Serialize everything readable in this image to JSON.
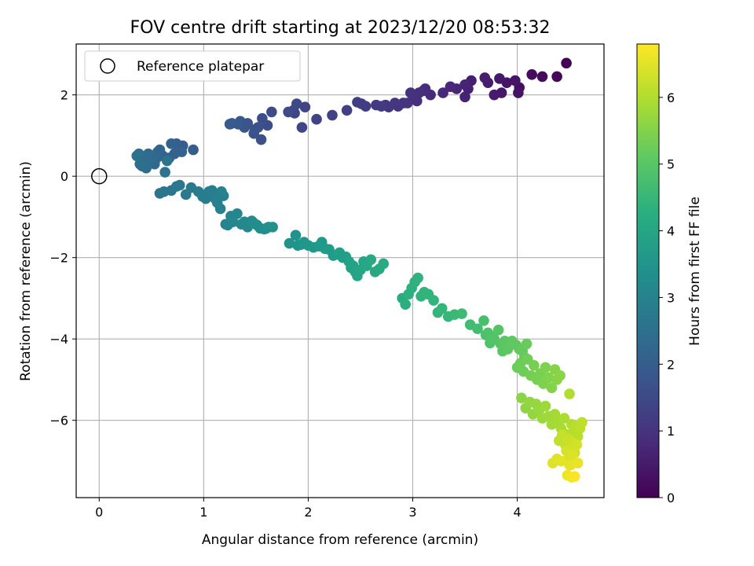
{
  "chart_data": {
    "type": "scatter",
    "title": "FOV centre drift starting at 2023/12/20 08:53:32",
    "xlabel": "Angular distance from reference (arcmin)",
    "ylabel": "Rotation from reference (arcmin)",
    "xlim": [
      -0.22,
      4.83
    ],
    "ylim": [
      -7.9,
      3.25
    ],
    "xticks": [
      0,
      1,
      2,
      3,
      4
    ],
    "yticks": [
      -6,
      -4,
      -2,
      0,
      2
    ],
    "grid": true,
    "legend": {
      "placement": "top-left",
      "entries": [
        "Reference platepar"
      ]
    },
    "colorbar": {
      "label": "Hours from first FF file",
      "colormap": "viridis",
      "range": [
        0,
        6.8
      ],
      "ticks": [
        0,
        1,
        2,
        3,
        4,
        5,
        6
      ]
    },
    "reference_point": {
      "x": 0,
      "y": 0,
      "label": "Reference platepar"
    },
    "series": [
      {
        "x": [
          4.47,
          4.38,
          4.24,
          4.14,
          4.02,
          4.01,
          3.98,
          3.9,
          3.85,
          3.83,
          3.78,
          3.72,
          3.69,
          3.56,
          3.53,
          3.5,
          3.5,
          3.42,
          3.36,
          3.29,
          3.17,
          3.12,
          3.1,
          3.06,
          3.04,
          3.01,
          2.98,
          2.95,
          2.91,
          2.86,
          2.83,
          2.77,
          2.74,
          2.7,
          2.65,
          2.55,
          2.51,
          2.47,
          2.37,
          2.23,
          2.08,
          1.97,
          1.94,
          1.87,
          1.86,
          1.89,
          1.81,
          1.65,
          1.61,
          1.56,
          1.55,
          1.52,
          1.49,
          1.48,
          1.42,
          1.39,
          1.35,
          1.33,
          1.27,
          1.25
        ],
        "y": [
          2.78,
          2.45,
          2.45,
          2.5,
          2.18,
          2.05,
          2.35,
          2.3,
          2.05,
          2.4,
          2.0,
          2.3,
          2.42,
          2.35,
          2.15,
          1.95,
          2.25,
          2.15,
          2.2,
          2.05,
          2.0,
          2.15,
          2.1,
          2.05,
          1.85,
          1.95,
          2.05,
          1.8,
          1.8,
          1.72,
          1.8,
          1.7,
          1.75,
          1.72,
          1.75,
          1.72,
          1.78,
          1.82,
          1.62,
          1.5,
          1.4,
          1.7,
          1.2,
          1.55,
          1.62,
          1.78,
          1.58,
          1.58,
          1.25,
          1.42,
          0.9,
          1.2,
          1.15,
          1.05,
          1.3,
          1.2,
          1.35,
          1.28,
          1.3,
          1.28
        ],
        "t": [
          0.05,
          0.12,
          0.18,
          0.22,
          0.28,
          0.32,
          0.35,
          0.38,
          0.42,
          0.45,
          0.48,
          0.52,
          0.55,
          0.58,
          0.62,
          0.65,
          0.68,
          0.72,
          0.75,
          0.78,
          0.82,
          0.85,
          0.88,
          0.9,
          0.92,
          0.95,
          0.98,
          1.0,
          1.02,
          1.05,
          1.08,
          1.1,
          1.12,
          1.15,
          1.18,
          1.2,
          1.22,
          1.25,
          1.28,
          1.32,
          1.35,
          1.38,
          1.4,
          1.42,
          1.45,
          1.48,
          1.5,
          1.55,
          1.58,
          1.62,
          1.65,
          1.68,
          1.72,
          1.75,
          1.78,
          1.82,
          1.85,
          1.88,
          1.92,
          1.95
        ]
      },
      {
        "x": [
          0.9,
          0.8,
          0.74,
          0.69,
          0.79,
          0.72,
          0.67,
          0.61,
          0.58,
          0.56,
          0.55,
          0.53,
          0.51,
          0.5,
          0.47,
          0.46,
          0.45,
          0.43,
          0.41,
          0.39,
          0.38,
          0.36,
          0.63,
          0.65,
          0.58,
          0.62,
          0.69,
          0.74,
          0.77,
          0.83,
          0.88,
          0.95,
          0.99,
          1.02,
          1.05,
          1.08,
          1.11,
          1.13,
          1.16,
          1.19,
          1.17,
          1.21,
          1.23,
          1.26,
          1.28,
          1.32,
          1.36,
          1.39,
          1.42,
          1.46,
          1.48,
          1.51,
          1.54,
          1.58,
          1.6,
          1.62,
          1.66,
          1.82,
          1.88,
          1.9,
          1.93,
          1.96
        ],
        "y": [
          0.65,
          0.75,
          0.8,
          0.8,
          0.6,
          0.55,
          0.45,
          0.5,
          0.65,
          0.6,
          0.45,
          0.3,
          0.5,
          0.45,
          0.55,
          0.35,
          0.2,
          0.4,
          0.25,
          0.3,
          0.55,
          0.5,
          0.1,
          0.38,
          -0.42,
          -0.38,
          -0.35,
          -0.25,
          -0.22,
          -0.45,
          -0.28,
          -0.38,
          -0.5,
          -0.55,
          -0.38,
          -0.35,
          -0.55,
          -0.65,
          -0.8,
          -0.48,
          -0.38,
          -1.18,
          -1.2,
          -0.98,
          -1.12,
          -0.92,
          -1.18,
          -1.12,
          -1.25,
          -1.1,
          -1.15,
          -1.2,
          -1.28,
          -1.3,
          -1.28,
          -1.25,
          -1.25,
          -1.65,
          -1.45,
          -1.7,
          -1.68,
          -1.62
        ],
        "t": [
          1.98,
          2.02,
          2.05,
          2.08,
          2.1,
          2.12,
          2.15,
          2.18,
          2.2,
          2.22,
          2.25,
          2.28,
          2.3,
          2.32,
          2.35,
          2.38,
          2.4,
          2.42,
          2.45,
          2.48,
          2.5,
          2.52,
          2.55,
          2.58,
          2.62,
          2.65,
          2.68,
          2.7,
          2.72,
          2.75,
          2.78,
          2.8,
          2.82,
          2.85,
          2.88,
          2.9,
          2.92,
          2.95,
          2.98,
          3.0,
          3.02,
          3.05,
          3.08,
          3.1,
          3.12,
          3.15,
          3.18,
          3.2,
          3.22,
          3.25,
          3.28,
          3.3,
          3.32,
          3.35,
          3.38,
          3.4,
          3.42,
          3.45,
          3.48,
          3.5,
          3.52,
          3.55
        ]
      },
      {
        "x": [
          2.0,
          2.05,
          2.1,
          2.13,
          2.16,
          2.2,
          2.24,
          2.28,
          2.3,
          2.33,
          2.36,
          2.39,
          2.41,
          2.43,
          2.45,
          2.47,
          2.5,
          2.53,
          2.56,
          2.6,
          2.64,
          2.68,
          2.72,
          2.9,
          2.93,
          2.96,
          2.99,
          3.02,
          3.05,
          3.08,
          3.11,
          3.15,
          3.2,
          3.24,
          3.28,
          3.34,
          3.4,
          3.47,
          3.55,
          3.62,
          3.68,
          3.7,
          3.72,
          3.74,
          3.76,
          3.78,
          3.82,
          3.84,
          3.86,
          3.88,
          3.91,
          3.95,
          3.99,
          4.02,
          4.05,
          4.07,
          4.09
        ],
        "y": [
          -1.7,
          -1.75,
          -1.72,
          -1.62,
          -1.78,
          -1.8,
          -1.95,
          -1.92,
          -1.88,
          -2.0,
          -1.98,
          -2.1,
          -2.25,
          -2.2,
          -2.35,
          -2.45,
          -2.3,
          -2.1,
          -2.2,
          -2.05,
          -2.35,
          -2.28,
          -2.15,
          -3.0,
          -3.15,
          -2.9,
          -2.75,
          -2.6,
          -2.5,
          -2.95,
          -2.85,
          -2.9,
          -3.05,
          -3.35,
          -3.25,
          -3.45,
          -3.4,
          -3.38,
          -3.65,
          -3.75,
          -3.55,
          -3.9,
          -3.85,
          -4.1,
          -3.95,
          -4.0,
          -3.78,
          -4.12,
          -4.3,
          -4.05,
          -4.25,
          -4.05,
          -4.15,
          -4.25,
          -4.3,
          -4.45,
          -4.12
        ],
        "t": [
          3.58,
          3.62,
          3.65,
          3.68,
          3.7,
          3.72,
          3.75,
          3.78,
          3.8,
          3.82,
          3.85,
          3.88,
          3.9,
          3.92,
          3.95,
          3.98,
          4.0,
          4.02,
          4.05,
          4.08,
          4.1,
          4.12,
          4.15,
          4.2,
          4.25,
          4.28,
          4.3,
          4.32,
          4.35,
          4.38,
          4.4,
          4.42,
          4.45,
          4.48,
          4.5,
          4.55,
          4.6,
          4.65,
          4.7,
          4.75,
          4.8,
          4.85,
          4.88,
          4.9,
          4.92,
          4.95,
          4.98,
          5.0,
          5.02,
          5.05,
          5.08,
          5.1,
          5.12,
          5.15,
          5.18,
          5.2,
          5.22
        ]
      },
      {
        "x": [
          4.0,
          4.03,
          4.06,
          4.1,
          4.13,
          4.16,
          4.19,
          4.22,
          4.25,
          4.27,
          4.3,
          4.33,
          4.36,
          4.38,
          4.41,
          4.04,
          4.08,
          4.12,
          4.15,
          4.18,
          4.21,
          4.24,
          4.27,
          4.3,
          4.33,
          4.36,
          4.39,
          4.42,
          4.45,
          4.48,
          4.5,
          4.52,
          4.54,
          4.56,
          4.58,
          4.6,
          4.62,
          4.4,
          4.43,
          4.46,
          4.49,
          4.51,
          4.53,
          4.55,
          4.57,
          4.47,
          4.49,
          4.51,
          4.53,
          4.34,
          4.38,
          4.42,
          4.5,
          4.58,
          4.48,
          4.52,
          4.55
        ],
        "y": [
          -4.7,
          -4.6,
          -4.8,
          -4.5,
          -4.9,
          -4.65,
          -5.0,
          -4.85,
          -5.1,
          -4.7,
          -4.95,
          -5.2,
          -4.75,
          -5.0,
          -4.9,
          -5.45,
          -5.7,
          -5.55,
          -5.85,
          -5.6,
          -5.75,
          -5.95,
          -5.65,
          -5.9,
          -6.1,
          -5.85,
          -6.05,
          -6.2,
          -5.95,
          -6.35,
          -5.35,
          -6.1,
          -6.3,
          -6.15,
          -6.4,
          -6.2,
          -6.05,
          -6.5,
          -6.35,
          -6.6,
          -6.45,
          -6.7,
          -6.55,
          -6.8,
          -6.6,
          -6.75,
          -6.95,
          -7.1,
          -6.85,
          -7.05,
          -6.95,
          -7.0,
          -7.1,
          -7.05,
          -7.35,
          -7.4,
          -7.38
        ],
        "t": [
          5.25,
          5.28,
          5.3,
          5.32,
          5.35,
          5.38,
          5.4,
          5.42,
          5.45,
          5.48,
          5.5,
          5.52,
          5.55,
          5.58,
          5.6,
          5.62,
          5.65,
          5.68,
          5.7,
          5.72,
          5.75,
          5.78,
          5.8,
          5.82,
          5.85,
          5.88,
          5.9,
          5.92,
          5.95,
          5.98,
          6.0,
          6.02,
          6.05,
          6.08,
          6.1,
          6.12,
          6.15,
          6.18,
          6.2,
          6.22,
          6.25,
          6.28,
          6.3,
          6.32,
          6.35,
          6.38,
          6.4,
          6.42,
          6.45,
          6.48,
          6.5,
          6.52,
          6.55,
          6.58,
          6.62,
          6.68,
          6.75
        ]
      }
    ]
  }
}
